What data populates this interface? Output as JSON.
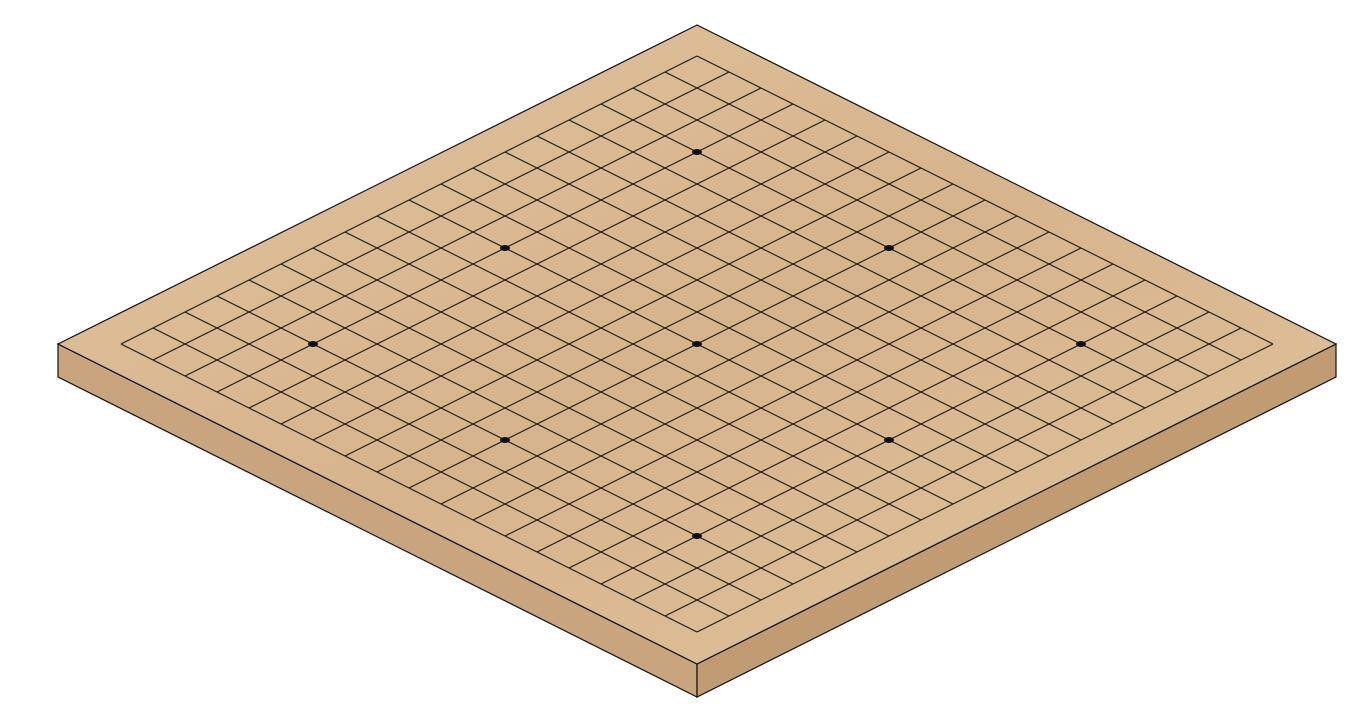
{
  "board": {
    "type": "go-board",
    "view": "isometric",
    "grid_size": 19,
    "star_points": [
      [
        3,
        3
      ],
      [
        3,
        9
      ],
      [
        3,
        15
      ],
      [
        9,
        3
      ],
      [
        9,
        9
      ],
      [
        9,
        15
      ],
      [
        15,
        3
      ],
      [
        15,
        9
      ],
      [
        15,
        15
      ]
    ],
    "stones": [],
    "colors": {
      "background": "#ffffff",
      "wood_top": "#d6b48c",
      "wood_top_light": "#e2c49e",
      "wood_left_side": "#c9a57d",
      "wood_right_side": "#c19c73",
      "grid_line": "#1a1a1a",
      "outline": "#111111",
      "star_point": "#111111"
    }
  }
}
